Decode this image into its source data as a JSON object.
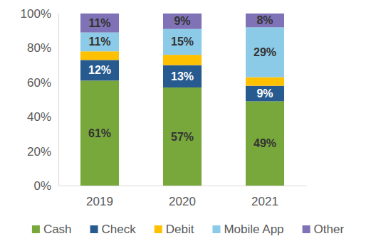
{
  "chart_data": {
    "type": "bar",
    "stacked": true,
    "data_labels": true,
    "grid": false,
    "legend": "bottom",
    "categories": [
      "2019",
      "2020",
      "2021"
    ],
    "ylim": [
      0,
      100
    ],
    "yticks": [
      {
        "value": 0,
        "label": "0%"
      },
      {
        "value": 20,
        "label": "20%"
      },
      {
        "value": 40,
        "label": "40%"
      },
      {
        "value": 60,
        "label": "60%"
      },
      {
        "value": 80,
        "label": "80%"
      },
      {
        "value": 100,
        "label": "100%"
      }
    ],
    "series": [
      {
        "name": "Cash",
        "color": "#78a83c",
        "values": [
          61,
          57,
          49
        ],
        "value_labels": [
          "61%",
          "57%",
          "49%"
        ]
      },
      {
        "name": "Check",
        "color": "#275b8f",
        "values": [
          12,
          13,
          9
        ],
        "value_labels": [
          "12%",
          "13%",
          "9%"
        ]
      },
      {
        "name": "Debit",
        "color": "#ffc000",
        "values": [
          5,
          6,
          5
        ],
        "value_labels": [
          null,
          null,
          null
        ]
      },
      {
        "name": "Mobile App",
        "color": "#8ccbe8",
        "values": [
          11,
          15,
          29
        ],
        "value_labels": [
          "11%",
          "15%",
          "29%"
        ]
      },
      {
        "name": "Other",
        "color": "#7f72b6",
        "values": [
          11,
          9,
          8
        ],
        "value_labels": [
          "11%",
          "9%",
          "8%"
        ]
      }
    ]
  }
}
